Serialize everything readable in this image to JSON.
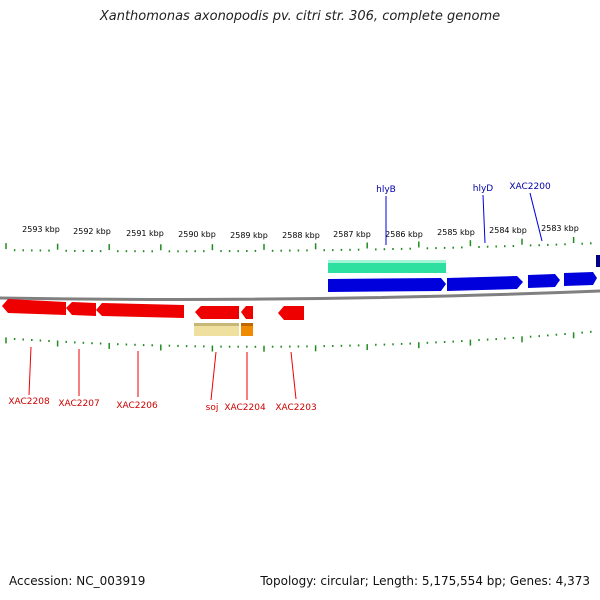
{
  "title": "Xanthomonas axonopodis pv. citri str. 306, complete genome",
  "footer": {
    "accession": "Accession: NC_003919",
    "summary": "Topology: circular; Length: 5,175,554 bp; Genes: 4,373"
  },
  "colors": {
    "forward_gene": "#0000dd",
    "reverse_gene": "#ee0000",
    "forward_label": "#0000aa",
    "reverse_label": "#cc0000",
    "ticks": "#1f8a1f",
    "backbone": "#808080",
    "aqua_feature": "#2ee0a0",
    "pale_feature": "#f0e0a0",
    "orange_feature": "#f08a00"
  },
  "scale_labels": [
    "2593 kbp",
    "2592 kbp",
    "2591 kbp",
    "2590 kbp",
    "2589 kbp",
    "2588 kbp",
    "2587 kbp",
    "2586 kbp",
    "2585 kbp",
    "2584 kbp",
    "2583 kbp"
  ],
  "forward_gene_labels": [
    "hlyB",
    "hlyD",
    "XAC2200"
  ],
  "reverse_gene_labels": [
    "XAC2208",
    "XAC2207",
    "XAC2206",
    "soj",
    "XAC2204",
    "XAC2203"
  ]
}
